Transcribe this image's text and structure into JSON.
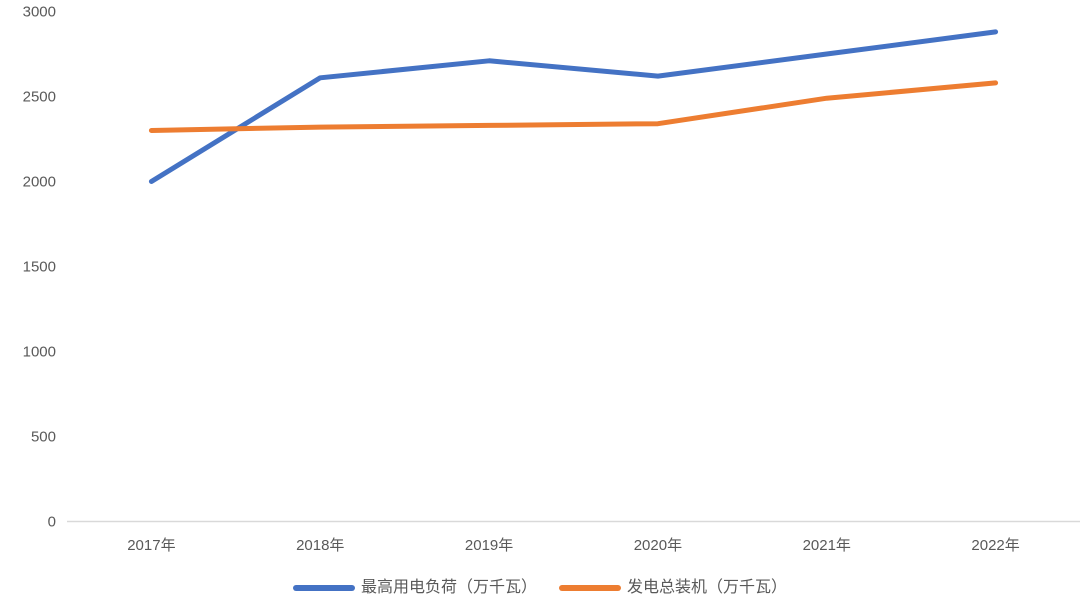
{
  "chart_data": {
    "type": "line",
    "title": "",
    "x": [
      "2017年",
      "2018年",
      "2019年",
      "2020年",
      "2021年",
      "2022年"
    ],
    "series": [
      {
        "name": "最高用电负荷（万千瓦）",
        "color": "#4472C4",
        "values": [
          2000,
          2610,
          2710,
          2620,
          2750,
          2880
        ]
      },
      {
        "name": "发电总装机（万千瓦）",
        "color": "#ED7D31",
        "values": [
          2300,
          2320,
          2330,
          2340,
          2490,
          2580
        ]
      }
    ],
    "y_axis": {
      "min": 0,
      "max": 3000,
      "step": 500,
      "ticks": [
        0,
        500,
        1000,
        1500,
        2000,
        2500,
        3000
      ]
    },
    "xlabel": "",
    "ylabel": "",
    "grid": false,
    "legend_position": "bottom",
    "colors": {
      "background": "#FFFFFF",
      "axis_line": "#D9D9D9",
      "tick_text": "#595959",
      "legend_text": "#595959"
    }
  }
}
